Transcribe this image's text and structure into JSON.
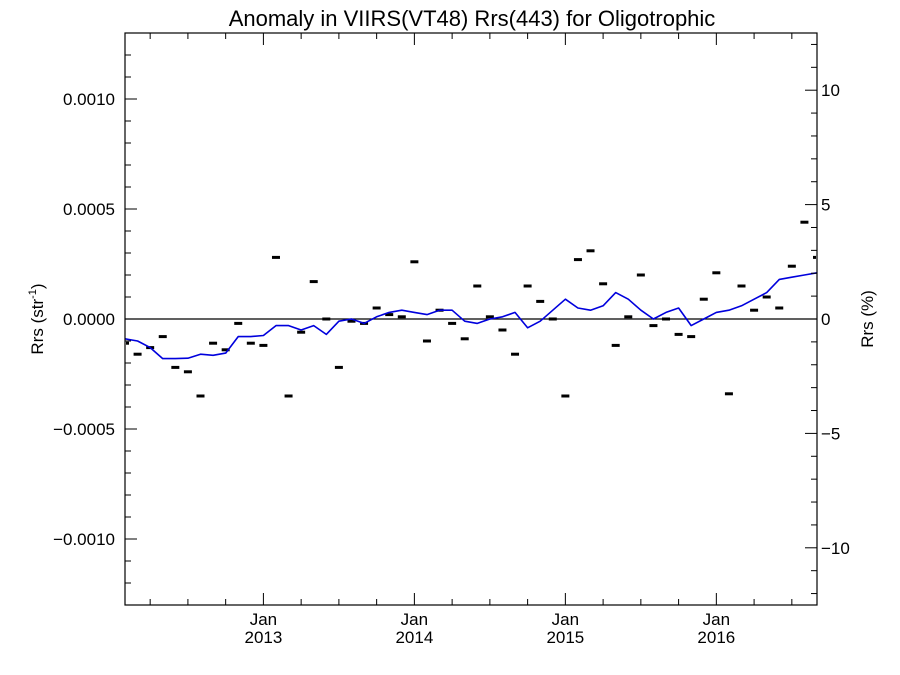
{
  "chart_data": {
    "type": "scatter",
    "title": "Anomaly in VIIRS(VT48) Rrs(443) for Oligotrophic",
    "ylabel_left": "Rrs (str",
    "ylabel_left_sup": "-1",
    "ylabel_left_close": ")",
    "ylabel_right": "Rrs (%)",
    "xlim": [
      "2012-02-01",
      "2016-08-01"
    ],
    "ylim": [
      -0.0013,
      0.0013
    ],
    "ylim_right": [
      -12.5,
      12.5
    ],
    "grid": false,
    "yticks_left": [
      {
        "value": 0.001,
        "label": "0.0010"
      },
      {
        "value": 0.0005,
        "label": "0.0005"
      },
      {
        "value": 0.0,
        "label": "0.0000"
      },
      {
        "value": -0.0005,
        "label": "−0.0005"
      },
      {
        "value": -0.001,
        "label": "−0.0010"
      }
    ],
    "yticks_right": [
      {
        "value": 10,
        "label": "10"
      },
      {
        "value": 5,
        "label": "5"
      },
      {
        "value": 0,
        "label": "0"
      },
      {
        "value": -5,
        "label": "−5"
      },
      {
        "value": -10,
        "label": "−10"
      }
    ],
    "xticks": [
      {
        "date": "2013-01-01",
        "month": "Jan",
        "year": "2013"
      },
      {
        "date": "2014-01-01",
        "month": "Jan",
        "year": "2014"
      },
      {
        "date": "2015-01-01",
        "month": "Jan",
        "year": "2015"
      },
      {
        "date": "2016-01-01",
        "month": "Jan",
        "year": "2016"
      }
    ],
    "series": [
      {
        "style": "marker-dash",
        "color": "#000000",
        "points": [
          {
            "x": "2012-02",
            "y": -0.00011
          },
          {
            "x": "2012-03",
            "y": -0.00016
          },
          {
            "x": "2012-04",
            "y": -0.00013
          },
          {
            "x": "2012-05",
            "y": -8e-05
          },
          {
            "x": "2012-06",
            "y": -0.00022
          },
          {
            "x": "2012-07",
            "y": -0.00024
          },
          {
            "x": "2012-08",
            "y": -0.00035
          },
          {
            "x": "2012-09",
            "y": -0.00011
          },
          {
            "x": "2012-10",
            "y": -0.00014
          },
          {
            "x": "2012-11",
            "y": -2e-05
          },
          {
            "x": "2012-12",
            "y": -0.00011
          },
          {
            "x": "2013-01",
            "y": -0.00012
          },
          {
            "x": "2013-02",
            "y": 0.00028
          },
          {
            "x": "2013-03",
            "y": -0.00035
          },
          {
            "x": "2013-04",
            "y": -6e-05
          },
          {
            "x": "2013-05",
            "y": 0.00017
          },
          {
            "x": "2013-06",
            "y": 0.0
          },
          {
            "x": "2013-07",
            "y": -0.00022
          },
          {
            "x": "2013-08",
            "y": -1e-05
          },
          {
            "x": "2013-09",
            "y": -2e-05
          },
          {
            "x": "2013-10",
            "y": 5e-05
          },
          {
            "x": "2013-11",
            "y": 2e-05
          },
          {
            "x": "2013-12",
            "y": 1e-05
          },
          {
            "x": "2014-01",
            "y": 0.00026
          },
          {
            "x": "2014-02",
            "y": -0.0001
          },
          {
            "x": "2014-03",
            "y": 4e-05
          },
          {
            "x": "2014-04",
            "y": -2e-05
          },
          {
            "x": "2014-05",
            "y": -9e-05
          },
          {
            "x": "2014-06",
            "y": 0.00015
          },
          {
            "x": "2014-07",
            "y": 1e-05
          },
          {
            "x": "2014-08",
            "y": -5e-05
          },
          {
            "x": "2014-09",
            "y": -0.00016
          },
          {
            "x": "2014-10",
            "y": 0.00015
          },
          {
            "x": "2014-11",
            "y": 8e-05
          },
          {
            "x": "2014-12",
            "y": 0.0
          },
          {
            "x": "2015-01",
            "y": -0.00035
          },
          {
            "x": "2015-02",
            "y": 0.00027
          },
          {
            "x": "2015-03",
            "y": 0.00031
          },
          {
            "x": "2015-04",
            "y": 0.00016
          },
          {
            "x": "2015-05",
            "y": -0.00012
          },
          {
            "x": "2015-06",
            "y": 1e-05
          },
          {
            "x": "2015-07",
            "y": 0.0002
          },
          {
            "x": "2015-08",
            "y": -3e-05
          },
          {
            "x": "2015-09",
            "y": 0.0
          },
          {
            "x": "2015-10",
            "y": -7e-05
          },
          {
            "x": "2015-11",
            "y": -8e-05
          },
          {
            "x": "2015-12",
            "y": 9e-05
          },
          {
            "x": "2016-01",
            "y": 0.00021
          },
          {
            "x": "2016-02",
            "y": -0.00034
          },
          {
            "x": "2016-03",
            "y": 0.00015
          },
          {
            "x": "2016-04",
            "y": 4e-05
          },
          {
            "x": "2016-05",
            "y": 0.0001
          },
          {
            "x": "2016-06",
            "y": 5e-05
          },
          {
            "x": "2016-07",
            "y": 0.00024
          },
          {
            "x": "2016-08",
            "y": 0.00044
          },
          {
            "x": "2016-09",
            "y": 0.00028
          }
        ]
      },
      {
        "style": "line",
        "color": "#0000dd",
        "points": [
          {
            "x": "2012-02",
            "y": -9e-05
          },
          {
            "x": "2012-03",
            "y": -0.0001
          },
          {
            "x": "2012-04",
            "y": -0.00013
          },
          {
            "x": "2012-05",
            "y": -0.00018
          },
          {
            "x": "2012-06",
            "y": -0.00018
          },
          {
            "x": "2012-07",
            "y": -0.000178
          },
          {
            "x": "2012-08",
            "y": -0.00016
          },
          {
            "x": "2012-09",
            "y": -0.000165
          },
          {
            "x": "2012-10",
            "y": -0.000155
          },
          {
            "x": "2012-11",
            "y": -8e-05
          },
          {
            "x": "2012-12",
            "y": -8e-05
          },
          {
            "x": "2013-01",
            "y": -7.5e-05
          },
          {
            "x": "2013-02",
            "y": -3e-05
          },
          {
            "x": "2013-03",
            "y": -3e-05
          },
          {
            "x": "2013-04",
            "y": -5e-05
          },
          {
            "x": "2013-05",
            "y": -3e-05
          },
          {
            "x": "2013-06",
            "y": -7e-05
          },
          {
            "x": "2013-07",
            "y": -1e-05
          },
          {
            "x": "2013-08",
            "y": 0.0
          },
          {
            "x": "2013-09",
            "y": -2e-05
          },
          {
            "x": "2013-10",
            "y": 1e-05
          },
          {
            "x": "2013-11",
            "y": 3e-05
          },
          {
            "x": "2013-12",
            "y": 4e-05
          },
          {
            "x": "2014-01",
            "y": 3e-05
          },
          {
            "x": "2014-02",
            "y": 2e-05
          },
          {
            "x": "2014-03",
            "y": 4e-05
          },
          {
            "x": "2014-04",
            "y": 4e-05
          },
          {
            "x": "2014-05",
            "y": -1e-05
          },
          {
            "x": "2014-06",
            "y": -2e-05
          },
          {
            "x": "2014-07",
            "y": 0.0
          },
          {
            "x": "2014-08",
            "y": 1e-05
          },
          {
            "x": "2014-09",
            "y": 3e-05
          },
          {
            "x": "2014-10",
            "y": -4e-05
          },
          {
            "x": "2014-11",
            "y": -1e-05
          },
          {
            "x": "2014-12",
            "y": 4e-05
          },
          {
            "x": "2015-01",
            "y": 9e-05
          },
          {
            "x": "2015-02",
            "y": 5e-05
          },
          {
            "x": "2015-03",
            "y": 4e-05
          },
          {
            "x": "2015-04",
            "y": 6e-05
          },
          {
            "x": "2015-05",
            "y": 0.00012
          },
          {
            "x": "2015-06",
            "y": 9e-05
          },
          {
            "x": "2015-07",
            "y": 4e-05
          },
          {
            "x": "2015-08",
            "y": 0.0
          },
          {
            "x": "2015-09",
            "y": 3e-05
          },
          {
            "x": "2015-10",
            "y": 5e-05
          },
          {
            "x": "2015-11",
            "y": -3e-05
          },
          {
            "x": "2015-12",
            "y": 0.0
          },
          {
            "x": "2016-01",
            "y": 3e-05
          },
          {
            "x": "2016-02",
            "y": 4e-05
          },
          {
            "x": "2016-03",
            "y": 6e-05
          },
          {
            "x": "2016-04",
            "y": 9e-05
          },
          {
            "x": "2016-05",
            "y": 0.00012
          },
          {
            "x": "2016-06",
            "y": 0.00018
          },
          {
            "x": "2016-07",
            "y": 0.00019
          },
          {
            "x": "2016-08",
            "y": 0.0002
          },
          {
            "x": "2016-09",
            "y": 0.00021
          }
        ]
      }
    ]
  }
}
